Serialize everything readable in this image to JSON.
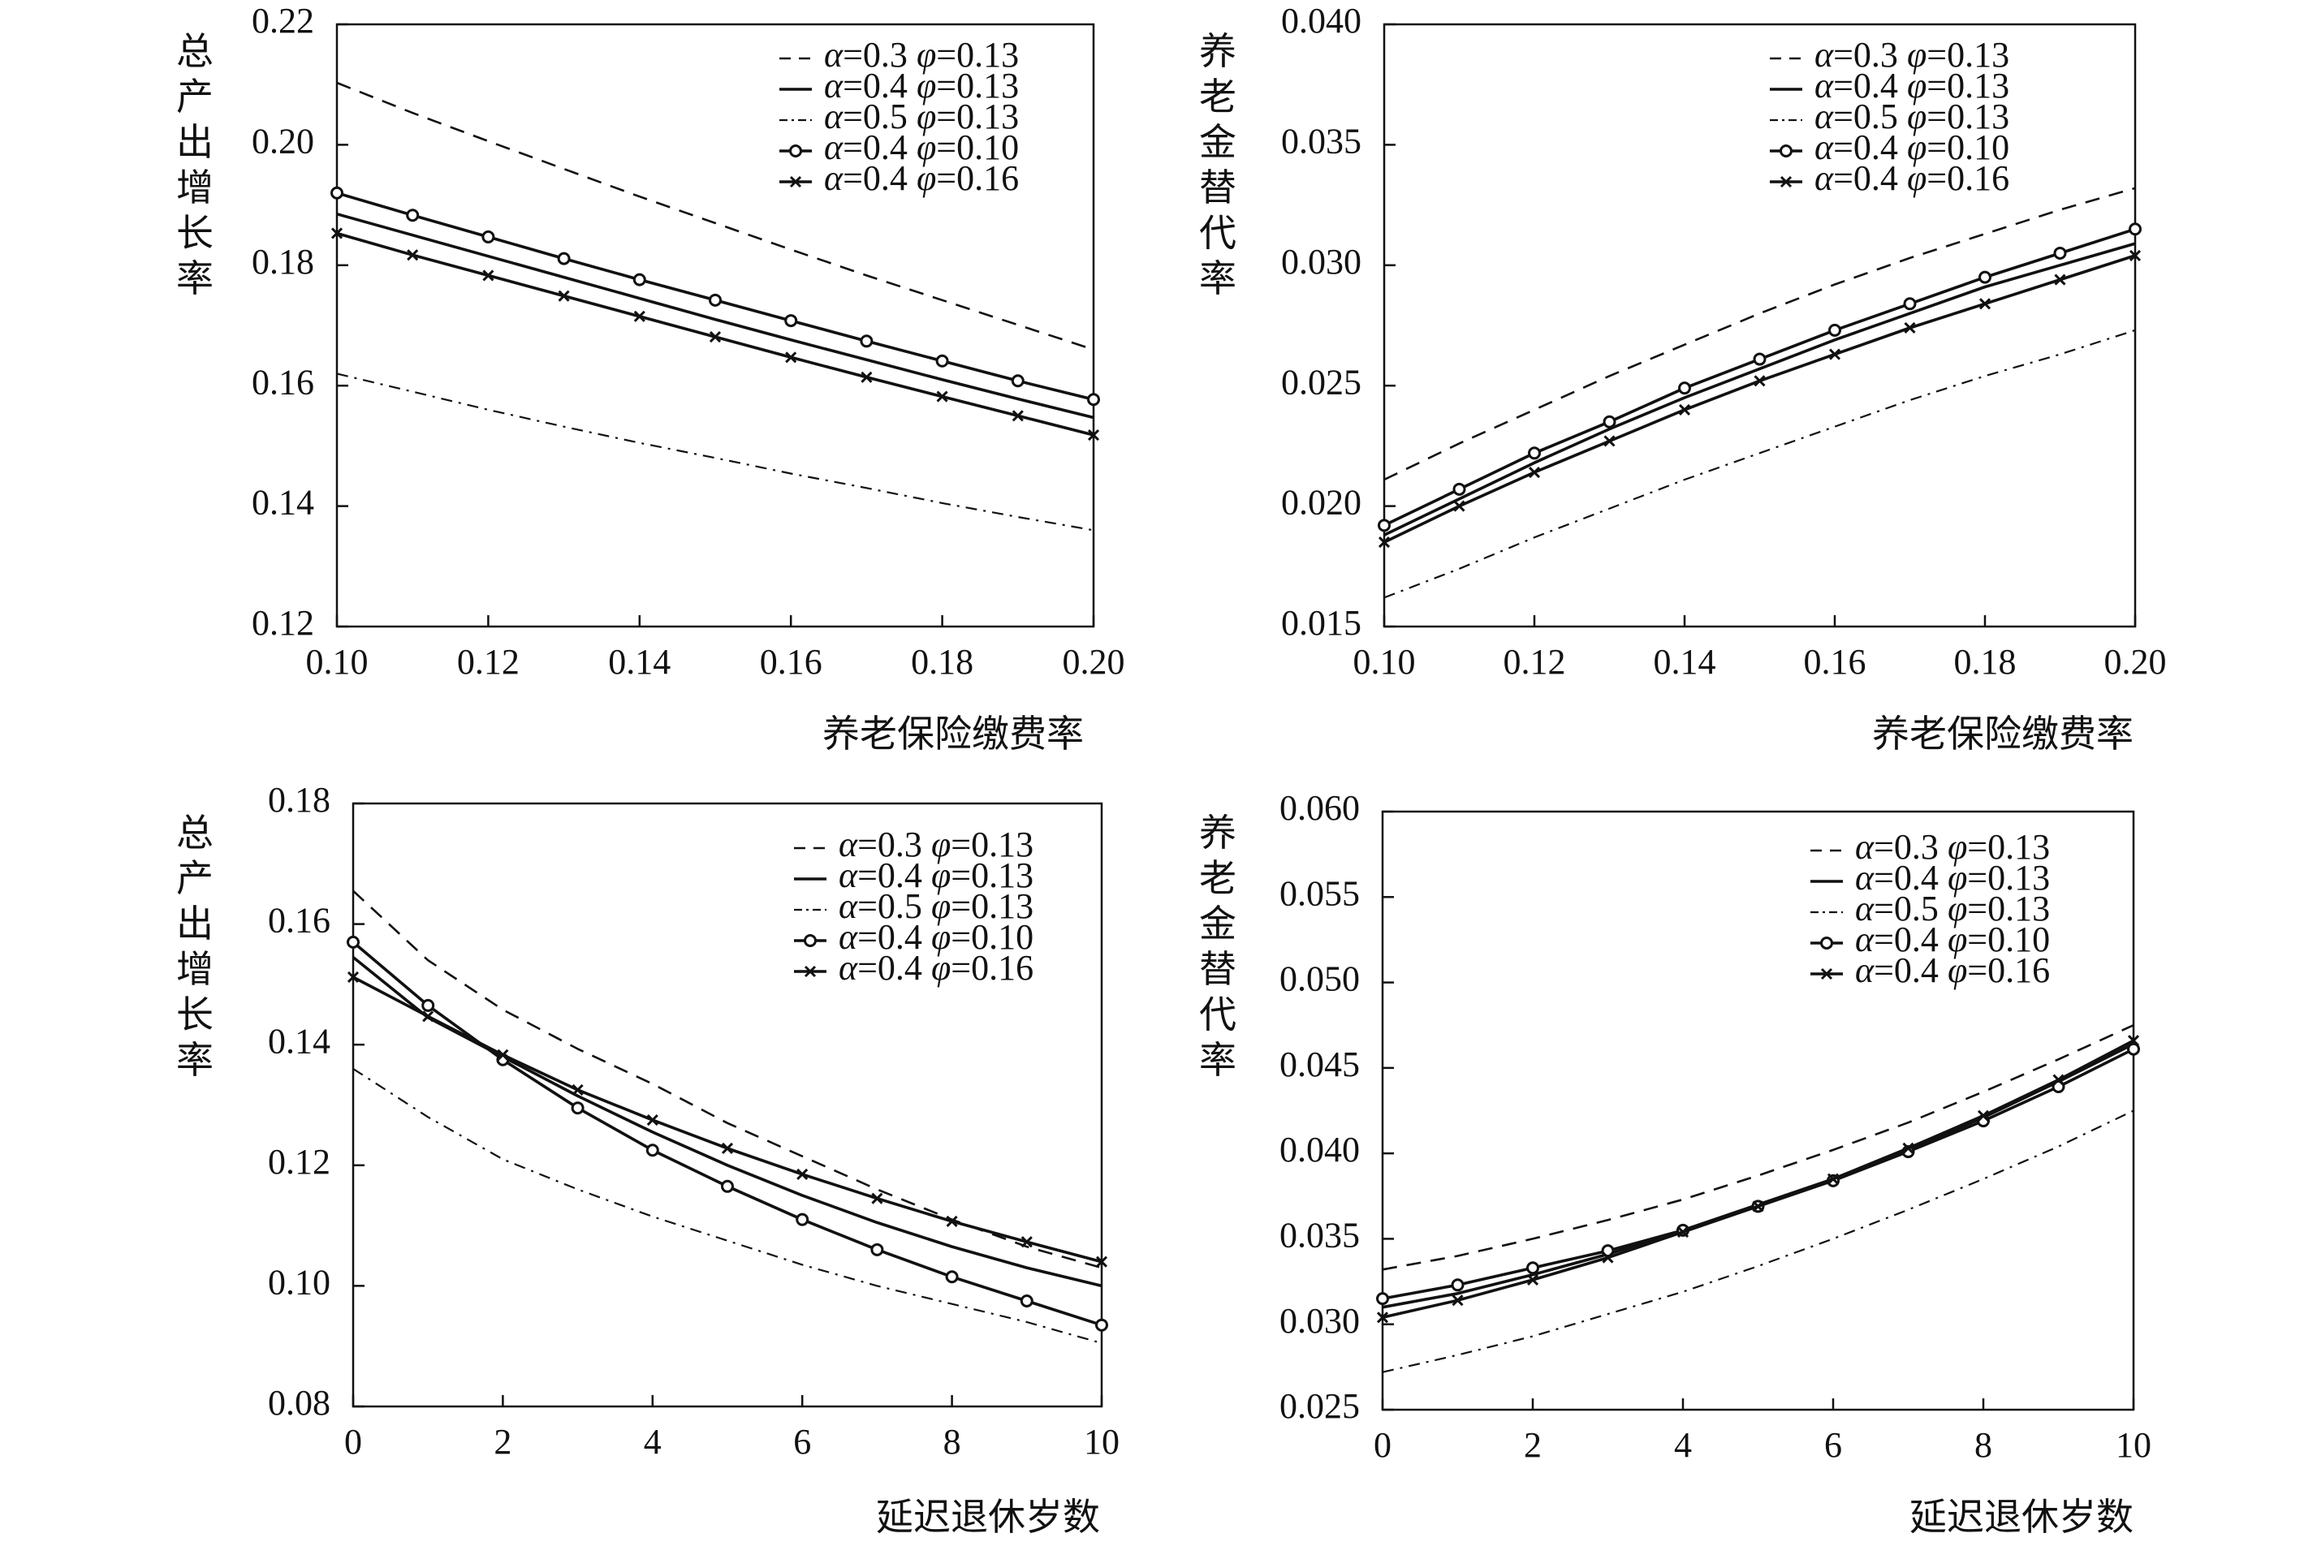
{
  "chart_data": [
    {
      "type": "line",
      "title": "",
      "ylabel": "总产出增长率",
      "xlabel": "养老保险缴费率",
      "xlim": [
        0.1,
        0.2
      ],
      "ylim": [
        0.12,
        0.22
      ],
      "x_ticks": [
        "0.10",
        "0.12",
        "0.14",
        "0.16",
        "0.18",
        "0.20"
      ],
      "y_ticks": [
        "0.12",
        "0.14",
        "0.16",
        "0.18",
        "0.20",
        "0.22"
      ],
      "legend_position": "top-right",
      "x": [
        0.1,
        0.11,
        0.12,
        0.13,
        0.14,
        0.15,
        0.16,
        0.17,
        0.18,
        0.19,
        0.2
      ],
      "series": [
        {
          "name": "α=0.3 φ=0.13",
          "style": "dashed",
          "values": [
            0.2103,
            0.2053,
            0.2006,
            0.196,
            0.1914,
            0.187,
            0.1826,
            0.1783,
            0.1742,
            0.1701,
            0.166
          ]
        },
        {
          "name": "α=0.4 φ=0.13",
          "style": "solid",
          "values": [
            0.1885,
            0.185,
            0.1815,
            0.178,
            0.1745,
            0.171,
            0.1676,
            0.1643,
            0.161,
            0.1578,
            0.1547
          ]
        },
        {
          "name": "α=0.5 φ=0.13",
          "style": "dashdot",
          "values": [
            0.162,
            0.159,
            0.156,
            0.1532,
            0.1505,
            0.148,
            0.1454,
            0.143,
            0.1405,
            0.1382,
            0.136
          ]
        },
        {
          "name": "α=0.4 φ=0.10",
          "style": "circle",
          "values": [
            0.192,
            0.1883,
            0.1847,
            0.1811,
            0.1776,
            0.1742,
            0.1708,
            0.1674,
            0.1641,
            0.1608,
            0.1577
          ]
        },
        {
          "name": "α=0.4 φ=0.16",
          "style": "cross",
          "values": [
            0.1853,
            0.1817,
            0.1783,
            0.1749,
            0.1715,
            0.1681,
            0.1647,
            0.1614,
            0.1582,
            0.155,
            0.1518
          ]
        }
      ]
    },
    {
      "type": "line",
      "title": "",
      "ylabel": "养老金替代率",
      "xlabel": "养老保险缴费率",
      "xlim": [
        0.1,
        0.2
      ],
      "ylim": [
        0.015,
        0.04
      ],
      "x_ticks": [
        "0.10",
        "0.12",
        "0.14",
        "0.16",
        "0.18",
        "0.20"
      ],
      "y_ticks": [
        "0.015",
        "0.020",
        "0.025",
        "0.030",
        "0.035",
        "0.040"
      ],
      "legend_position": "top-right",
      "x": [
        0.1,
        0.11,
        0.12,
        0.13,
        0.14,
        0.15,
        0.16,
        0.17,
        0.18,
        0.19,
        0.2
      ],
      "series": [
        {
          "name": "α=0.3 φ=0.13",
          "style": "dashed",
          "values": [
            0.0211,
            0.0226,
            0.024,
            0.0254,
            0.0267,
            0.028,
            0.0292,
            0.0303,
            0.0313,
            0.0323,
            0.0332
          ]
        },
        {
          "name": "α=0.4 φ=0.13",
          "style": "solid",
          "values": [
            0.0188,
            0.0203,
            0.0218,
            0.0232,
            0.0245,
            0.0257,
            0.0269,
            0.028,
            0.0291,
            0.03,
            0.0309
          ]
        },
        {
          "name": "α=0.5 φ=0.13",
          "style": "dashdot",
          "values": [
            0.0162,
            0.0174,
            0.0187,
            0.0199,
            0.0211,
            0.0222,
            0.0233,
            0.0244,
            0.0254,
            0.0263,
            0.0273
          ]
        },
        {
          "name": "α=0.4 φ=0.10",
          "style": "circle",
          "values": [
            0.0192,
            0.0207,
            0.0222,
            0.0235,
            0.0249,
            0.0261,
            0.0273,
            0.0284,
            0.0295,
            0.0305,
            0.0315
          ]
        },
        {
          "name": "α=0.4 φ=0.16",
          "style": "cross",
          "values": [
            0.0185,
            0.02,
            0.0214,
            0.0227,
            0.024,
            0.0252,
            0.0263,
            0.0274,
            0.0284,
            0.0294,
            0.0304
          ]
        }
      ]
    },
    {
      "type": "line",
      "title": "",
      "ylabel": "总产出增长率",
      "xlabel": "延迟退休岁数",
      "xlim": [
        0,
        10
      ],
      "ylim": [
        0.08,
        0.18
      ],
      "x_ticks": [
        "0",
        "2",
        "4",
        "6",
        "8",
        "10"
      ],
      "y_ticks": [
        "0.08",
        "0.10",
        "0.12",
        "0.14",
        "0.16",
        "0.18"
      ],
      "legend_position": "top-right",
      "x": [
        0,
        1,
        2,
        3,
        4,
        5,
        6,
        7,
        8,
        9,
        10
      ],
      "series": [
        {
          "name": "α=0.3 φ=0.13",
          "style": "dashed",
          "values": [
            0.1655,
            0.154,
            0.1458,
            0.1393,
            0.1335,
            0.127,
            0.1215,
            0.116,
            0.111,
            0.1065,
            0.103
          ]
        },
        {
          "name": "α=0.4 φ=0.13",
          "style": "solid",
          "values": [
            0.1545,
            0.1445,
            0.138,
            0.1315,
            0.1255,
            0.12,
            0.115,
            0.1105,
            0.1065,
            0.103,
            0.1
          ]
        },
        {
          "name": "α=0.5 φ=0.13",
          "style": "dashdot",
          "values": [
            0.136,
            0.128,
            0.121,
            0.116,
            0.1115,
            0.1075,
            0.1035,
            0.1,
            0.097,
            0.094,
            0.0905
          ]
        },
        {
          "name": "α=0.4 φ=0.10",
          "style": "circle",
          "values": [
            0.157,
            0.1465,
            0.1375,
            0.1295,
            0.1225,
            0.1165,
            0.111,
            0.106,
            0.1015,
            0.0975,
            0.0935
          ]
        },
        {
          "name": "α=0.4 φ=0.16",
          "style": "cross",
          "values": [
            0.1512,
            0.1447,
            0.1383,
            0.1325,
            0.1275,
            0.1228,
            0.1185,
            0.1145,
            0.1107,
            0.1073,
            0.104
          ]
        }
      ]
    },
    {
      "type": "line",
      "title": "",
      "ylabel": "养老金替代率",
      "xlabel": "延迟退休岁数",
      "xlim": [
        0,
        10
      ],
      "ylim": [
        0.025,
        0.06
      ],
      "x_ticks": [
        "0",
        "2",
        "4",
        "6",
        "8",
        "10"
      ],
      "y_ticks": [
        "0.025",
        "0.030",
        "0.035",
        "0.040",
        "0.045",
        "0.050",
        "0.055",
        "0.060"
      ],
      "legend_position": "top-right",
      "x": [
        0,
        1,
        2,
        3,
        4,
        5,
        6,
        7,
        8,
        9,
        10
      ],
      "series": [
        {
          "name": "α=0.3 φ=0.13",
          "style": "dashed",
          "values": [
            0.0332,
            0.034,
            0.035,
            0.0361,
            0.0373,
            0.0387,
            0.0402,
            0.0418,
            0.0436,
            0.0455,
            0.0475
          ]
        },
        {
          "name": "α=0.4 φ=0.13",
          "style": "solid",
          "values": [
            0.031,
            0.0318,
            0.0329,
            0.0341,
            0.0355,
            0.037,
            0.0385,
            0.0402,
            0.0421,
            0.0442,
            0.0464
          ]
        },
        {
          "name": "α=0.5 φ=0.13",
          "style": "dashdot",
          "values": [
            0.0272,
            0.0282,
            0.0293,
            0.0306,
            0.0319,
            0.0334,
            0.035,
            0.0367,
            0.0385,
            0.0404,
            0.0425
          ]
        },
        {
          "name": "α=0.4 φ=0.10",
          "style": "circle",
          "values": [
            0.0315,
            0.0323,
            0.0333,
            0.0343,
            0.0355,
            0.0369,
            0.0384,
            0.0401,
            0.0419,
            0.0439,
            0.0461
          ]
        },
        {
          "name": "α=0.4 φ=0.16",
          "style": "cross",
          "values": [
            0.0304,
            0.0314,
            0.0326,
            0.0339,
            0.0354,
            0.0369,
            0.0385,
            0.0403,
            0.0422,
            0.0443,
            0.0466
          ]
        }
      ]
    }
  ]
}
